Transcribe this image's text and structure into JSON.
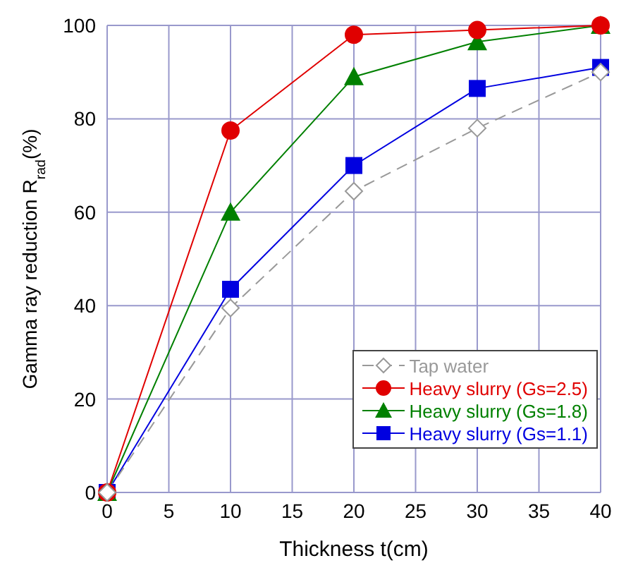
{
  "chart_data": {
    "type": "line",
    "xlabel": "Thickness t(cm)",
    "ylabel": "Gamma ray reduction R$_{rad}$(%)",
    "x": [
      0,
      10,
      20,
      30,
      40
    ],
    "series": [
      {
        "name": "Tap water",
        "color": "#999999",
        "marker": "diamond",
        "line_style": "dashed",
        "values": [
          0,
          39.5,
          64.5,
          78,
          90
        ]
      },
      {
        "name": "Heavy slurry (Gs=2.5)",
        "color": "#e00000",
        "marker": "circle",
        "values": [
          0,
          77.5,
          98,
          99,
          100
        ]
      },
      {
        "name": "Heavy slurry (Gs=1.8)",
        "color": "#008000",
        "marker": "triangle",
        "values": [
          0,
          60,
          89,
          96.5,
          100
        ]
      },
      {
        "name": "Heavy slurry (Gs=1.1)",
        "color": "#0000e0",
        "marker": "square",
        "values": [
          0,
          43.5,
          70,
          86.5,
          91
        ]
      }
    ],
    "xlim": [
      0,
      40
    ],
    "xticks": [
      0,
      5,
      10,
      15,
      20,
      25,
      30,
      35,
      40
    ],
    "ylim": [
      0,
      100
    ],
    "yticks": [
      0,
      20,
      40,
      60,
      80,
      100
    ],
    "grid": true,
    "legend": "bottom right"
  }
}
